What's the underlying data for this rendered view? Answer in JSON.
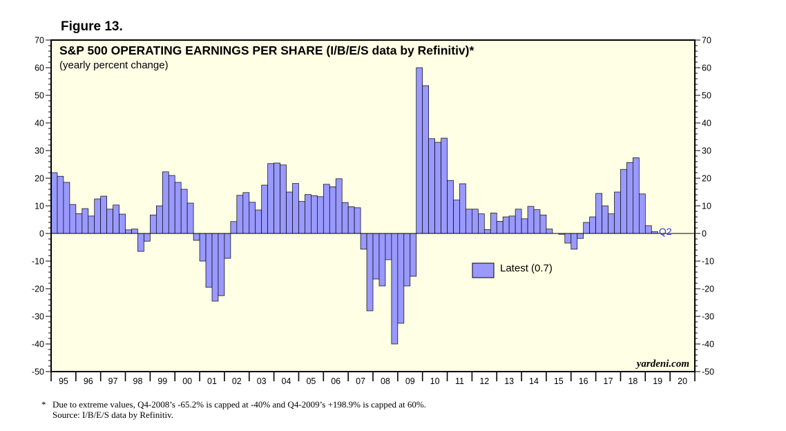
{
  "figure_label": "Figure 13.",
  "chart_data": {
    "type": "bar",
    "title": "S&P 500 OPERATING EARNINGS PER SHARE (I/B/E/S data by Refinitiv)*",
    "subtitle": "(yearly percent change)",
    "ylim": [
      -50,
      70
    ],
    "yticks": [
      70,
      60,
      50,
      40,
      30,
      20,
      10,
      0,
      -10,
      -20,
      -30,
      -40,
      -50
    ],
    "x_tick_labels": [
      "95",
      "96",
      "97",
      "98",
      "99",
      "00",
      "01",
      "02",
      "03",
      "04",
      "05",
      "06",
      "07",
      "08",
      "09",
      "10",
      "11",
      "12",
      "13",
      "14",
      "15",
      "16",
      "17",
      "18",
      "19",
      "20"
    ],
    "frequency": "quarterly",
    "start": "1995-Q1",
    "values": [
      22,
      20.7,
      18.5,
      10.5,
      7.2,
      9,
      6.3,
      12.5,
      13.5,
      8.8,
      10.3,
      7,
      1.3,
      1.6,
      -6.5,
      -2.8,
      6.7,
      10,
      22.3,
      21,
      18.5,
      16,
      11,
      -2.5,
      -10,
      -19.5,
      -24.5,
      -22.5,
      -9,
      4.3,
      13.8,
      14.8,
      11.3,
      8.5,
      17.5,
      25.3,
      25.5,
      24.8,
      15,
      18.1,
      11.6,
      14.1,
      13.7,
      13.3,
      17.8,
      16.9,
      19.8,
      11.2,
      9.7,
      9.3,
      -5.7,
      -28,
      -16.5,
      -19,
      -9.5,
      -40,
      -32.5,
      -19,
      -15.5,
      60,
      53.5,
      34.3,
      33,
      34.5,
      19.2,
      12.1,
      18,
      8.8,
      8.8,
      7.1,
      1.4,
      7.4,
      4.4,
      6,
      6.3,
      8.8,
      5.3,
      9.8,
      8.6,
      6.7,
      1.6,
      0,
      -0.3,
      -3.5,
      -5.7,
      -1.8,
      4,
      6,
      14.5,
      10,
      7.1,
      15,
      23.2,
      25.7,
      27.4,
      14.3,
      2.8,
      0.7
    ],
    "latest_label": "Q2",
    "legend": {
      "label": "Latest (0.7)",
      "color": "#9999ff",
      "position": "center-right"
    },
    "bar_color": "#9999ff",
    "plot_background": "#ffffe5",
    "watermark": "yardeni.com"
  },
  "footnote": {
    "marker": "*",
    "line1": "Due to extreme values, Q4-2008’s -65.2% is capped at -40% and Q4-2009’s +198.9% is capped at 60%.",
    "line2": "Source: I/B/E/S data by Refinitiv."
  }
}
